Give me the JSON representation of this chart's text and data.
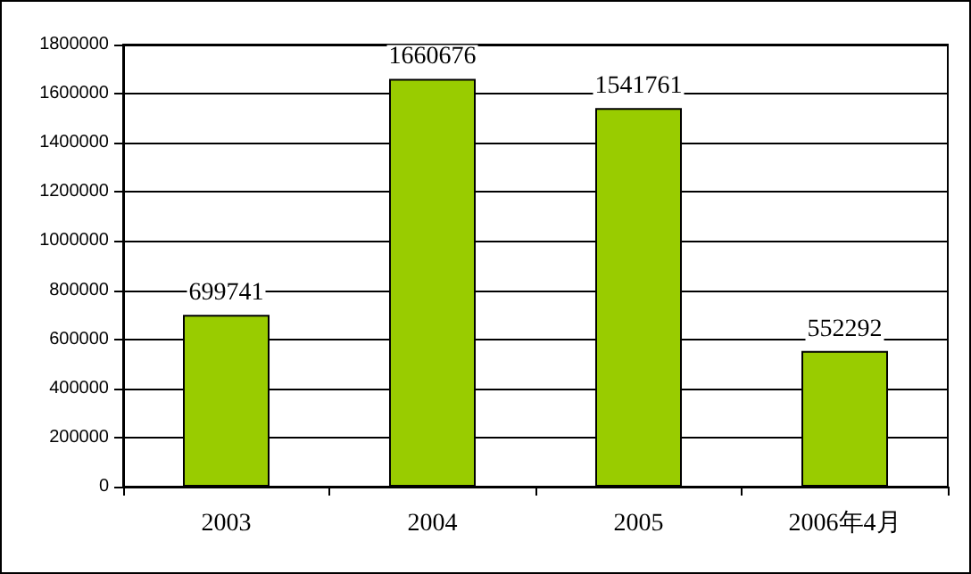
{
  "chart_data": {
    "type": "bar",
    "categories": [
      "2003",
      "2004",
      "2005",
      "2006年4月"
    ],
    "values": [
      699741,
      1660676,
      1541761,
      552292
    ],
    "color": "#99cc00",
    "ylim": [
      0,
      1800000
    ],
    "yticks": [
      0,
      200000,
      400000,
      600000,
      800000,
      1000000,
      1200000,
      1400000,
      1600000,
      1800000
    ],
    "grid": "y",
    "data_labels": true
  }
}
